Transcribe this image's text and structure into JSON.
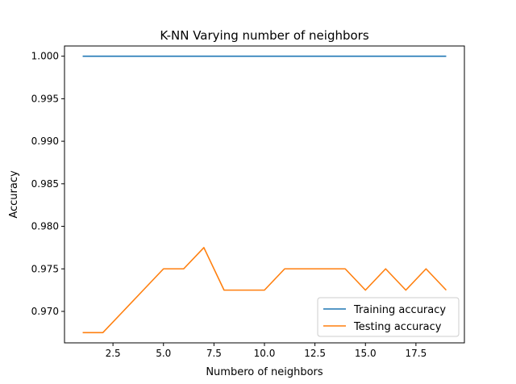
{
  "chart_data": {
    "type": "line",
    "title": "K-NN Varying number of neighbors",
    "xlabel": "Numbero of neighbors",
    "ylabel": "Accuracy",
    "xlim": [
      0.1,
      19.9
    ],
    "ylim": [
      0.9663,
      1.0012
    ],
    "x_ticks": [
      2.5,
      5.0,
      7.5,
      10.0,
      12.5,
      15.0,
      17.5
    ],
    "x_tick_labels": [
      "2.5",
      "5.0",
      "7.5",
      "10.0",
      "12.5",
      "15.0",
      "17.5"
    ],
    "y_ticks": [
      0.97,
      0.975,
      0.98,
      0.985,
      0.99,
      0.995,
      1.0
    ],
    "y_tick_labels": [
      "0.970",
      "0.975",
      "0.980",
      "0.985",
      "0.990",
      "0.995",
      "1.000"
    ],
    "grid": false,
    "legend_position": "lower-right",
    "x": [
      1,
      2,
      3,
      4,
      5,
      6,
      7,
      8,
      9,
      10,
      11,
      12,
      13,
      14,
      15,
      16,
      17,
      18,
      19
    ],
    "series": [
      {
        "name": "Training accuracy",
        "color": "#1f77b4",
        "values": [
          1.0,
          1.0,
          1.0,
          1.0,
          1.0,
          1.0,
          1.0,
          1.0,
          1.0,
          1.0,
          1.0,
          1.0,
          1.0,
          1.0,
          1.0,
          1.0,
          1.0,
          1.0,
          1.0
        ]
      },
      {
        "name": "Testing accuracy",
        "color": "#ff7f0e",
        "values": [
          0.9675,
          0.9675,
          0.97,
          0.9725,
          0.975,
          0.975,
          0.9775,
          0.9725,
          0.9725,
          0.9725,
          0.975,
          0.975,
          0.975,
          0.975,
          0.9725,
          0.975,
          0.9725,
          0.975,
          0.9725
        ]
      }
    ]
  }
}
